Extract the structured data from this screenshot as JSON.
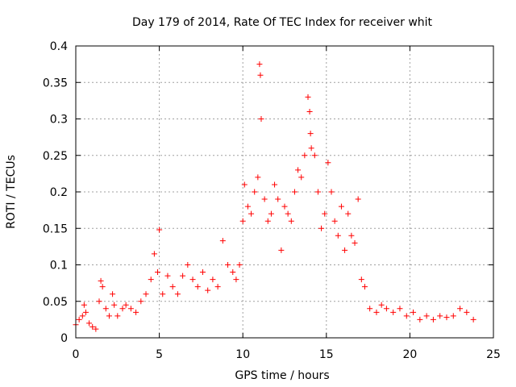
{
  "chart_data": {
    "type": "scatter",
    "title": "Day 179 of 2014, Rate Of TEC Index for receiver whit",
    "xlabel": "GPS time / hours",
    "ylabel": "ROTI / TECUs",
    "xlim": [
      0,
      25
    ],
    "ylim": [
      0,
      0.4
    ],
    "xticks": [
      0,
      5,
      10,
      15,
      20,
      25
    ],
    "xtick_labels": [
      "0",
      "5",
      "10",
      "15",
      "20",
      "25"
    ],
    "yticks": [
      0,
      0.05,
      0.1,
      0.15,
      0.2,
      0.25,
      0.3,
      0.35,
      0.4
    ],
    "ytick_labels": [
      "0",
      "0.05",
      "0.1",
      "0.15",
      "0.2",
      "0.25",
      "0.3",
      "0.35",
      "0.4"
    ],
    "grid": true,
    "marker": "plus",
    "point_color": "#ff0000",
    "grid_color": "#a0a0a0",
    "series": [
      {
        "name": "ROTI",
        "x": [
          0.0,
          0.2,
          0.4,
          0.5,
          0.6,
          0.8,
          1.0,
          1.2,
          1.4,
          1.5,
          1.6,
          1.8,
          2.0,
          2.2,
          2.3,
          2.5,
          2.8,
          3.0,
          3.3,
          3.6,
          3.9,
          4.2,
          4.5,
          4.7,
          4.9,
          5.0,
          5.2,
          5.5,
          5.8,
          6.1,
          6.4,
          6.7,
          7.0,
          7.3,
          7.6,
          7.9,
          8.2,
          8.5,
          8.8,
          9.1,
          9.4,
          9.6,
          9.8,
          10.0,
          10.1,
          10.3,
          10.5,
          10.7,
          10.9,
          11.0,
          11.05,
          11.1,
          11.3,
          11.5,
          11.7,
          11.9,
          12.1,
          12.3,
          12.5,
          12.7,
          12.9,
          13.1,
          13.3,
          13.5,
          13.7,
          13.9,
          14.0,
          14.05,
          14.1,
          14.3,
          14.5,
          14.7,
          14.9,
          15.1,
          15.3,
          15.5,
          15.7,
          15.9,
          16.1,
          16.3,
          16.5,
          16.7,
          16.9,
          17.1,
          17.3,
          17.6,
          18.0,
          18.3,
          18.6,
          19.0,
          19.4,
          19.8,
          20.2,
          20.6,
          21.0,
          21.4,
          21.8,
          22.2,
          22.6,
          23.0,
          23.4,
          23.8
        ],
        "y": [
          0.018,
          0.025,
          0.03,
          0.045,
          0.035,
          0.02,
          0.015,
          0.012,
          0.05,
          0.078,
          0.07,
          0.04,
          0.03,
          0.06,
          0.045,
          0.03,
          0.04,
          0.045,
          0.04,
          0.035,
          0.05,
          0.06,
          0.08,
          0.115,
          0.09,
          0.148,
          0.06,
          0.085,
          0.07,
          0.06,
          0.085,
          0.1,
          0.08,
          0.07,
          0.09,
          0.065,
          0.08,
          0.07,
          0.133,
          0.1,
          0.09,
          0.08,
          0.1,
          0.16,
          0.21,
          0.18,
          0.17,
          0.2,
          0.22,
          0.375,
          0.36,
          0.3,
          0.19,
          0.16,
          0.17,
          0.21,
          0.19,
          0.12,
          0.18,
          0.17,
          0.16,
          0.2,
          0.23,
          0.22,
          0.25,
          0.33,
          0.31,
          0.28,
          0.26,
          0.25,
          0.2,
          0.15,
          0.17,
          0.24,
          0.2,
          0.16,
          0.14,
          0.18,
          0.12,
          0.17,
          0.14,
          0.13,
          0.19,
          0.08,
          0.07,
          0.04,
          0.035,
          0.045,
          0.04,
          0.035,
          0.04,
          0.03,
          0.035,
          0.025,
          0.03,
          0.025,
          0.03,
          0.028,
          0.03,
          0.04,
          0.035,
          0.025
        ]
      }
    ]
  }
}
